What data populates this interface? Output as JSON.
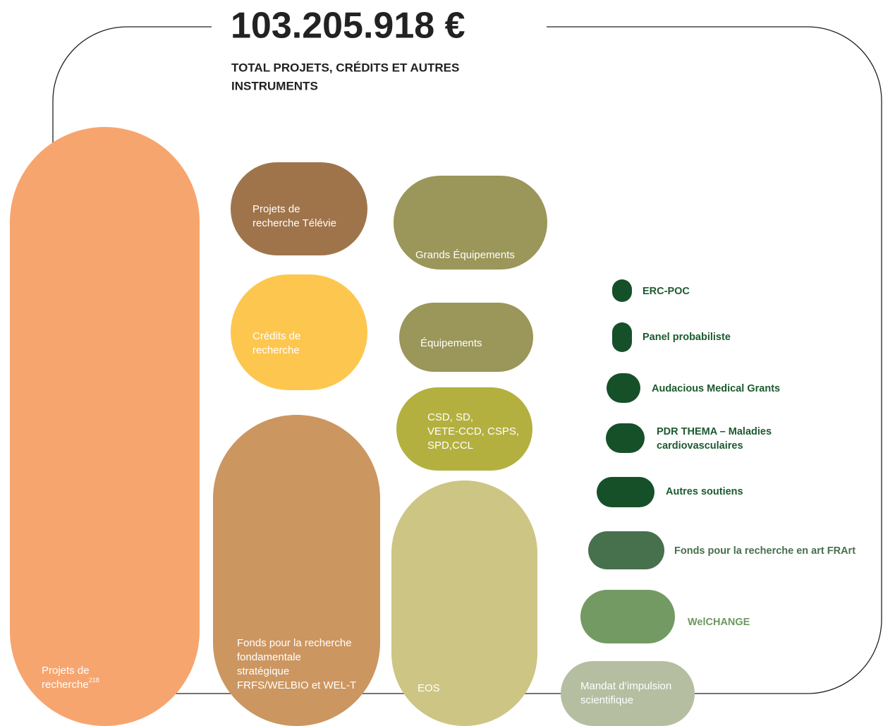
{
  "header": {
    "total": "103.205.918 €",
    "subtitle": [
      "TOTAL PROJETS, CRÉDITS ET AUTRES",
      "INSTRUMENTS"
    ]
  },
  "items": [
    {
      "lines": [
        "Projets de",
        "recherche"
      ],
      "note": "218"
    },
    {
      "lines": [
        "Projets de",
        "recherche Télévie"
      ]
    },
    {
      "lines": [
        "Crédits de",
        "recherche"
      ]
    },
    {
      "lines": [
        "Fonds pour la recherche",
        "fondamentale",
        "stratégique",
        "FRFS/WELBIO et WEL-T"
      ]
    },
    {
      "lines": [
        "Grands Équipements"
      ]
    },
    {
      "lines": [
        "Équipements"
      ]
    },
    {
      "lines": [
        "CSD, SD,",
        "VETE-CCD, CSPS,",
        "SPD,CCL"
      ]
    },
    {
      "lines": [
        "EOS"
      ]
    },
    {
      "lines": [
        "ERC-POC"
      ]
    },
    {
      "lines": [
        "Panel probabiliste"
      ]
    },
    {
      "lines": [
        "Audacious Medical Grants"
      ]
    },
    {
      "lines": [
        "PDR THEMA – Maladies",
        "cardiovasculaires"
      ]
    },
    {
      "lines": [
        "Autres soutiens"
      ]
    },
    {
      "lines": [
        "Fonds pour la recherche en art FRArt"
      ]
    },
    {
      "lines": [
        "WelCHANGE"
      ]
    },
    {
      "lines": [
        "Mandat d’impulsion",
        "scientifique"
      ]
    }
  ]
}
